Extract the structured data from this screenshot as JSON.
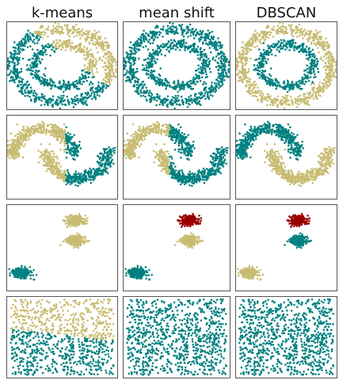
{
  "chart_data": {
    "type": "scatter",
    "columns": [
      "k-means",
      "mean shift",
      "DBSCAN"
    ],
    "xlim": [
      0,
      1
    ],
    "ylim": [
      0,
      1
    ],
    "grid": false,
    "colors": {
      "c0": "#008080",
      "c1": "#c8bc72",
      "c2": "#990000"
    },
    "rows": [
      {
        "dataset": "concentric circles",
        "shapes": [
          {
            "id": "outer",
            "kind": "ring",
            "cx": 0.5,
            "cy": 0.5,
            "rx": 0.44,
            "ry": 0.42,
            "noise": 0.035,
            "n": 750
          },
          {
            "id": "inner",
            "kind": "ring",
            "cx": 0.5,
            "cy": 0.5,
            "rx": 0.27,
            "ry": 0.24,
            "noise": 0.03,
            "n": 450
          }
        ],
        "assignments": [
          {
            "method": "k-means",
            "rule": "diagonal",
            "a": -0.9,
            "b": 1.1,
            "above": "c1",
            "below": "c0"
          },
          {
            "method": "mean shift",
            "rule": "all",
            "cluster": "c0"
          },
          {
            "method": "DBSCAN",
            "rule": "shape",
            "map": {
              "outer": "c1",
              "inner": "c0"
            }
          }
        ]
      },
      {
        "dataset": "half moons",
        "shapes": [
          {
            "id": "upper_moon",
            "kind": "arc",
            "cx": 0.33,
            "cy": 0.5,
            "rx": 0.28,
            "ry": 0.34,
            "from": 0,
            "to": 180,
            "noise": 0.035,
            "n": 550
          },
          {
            "id": "lower_moon",
            "kind": "arc",
            "cx": 0.64,
            "cy": 0.58,
            "rx": 0.28,
            "ry": 0.34,
            "from": 180,
            "to": 360,
            "noise": 0.035,
            "n": 550
          }
        ],
        "assignments": [
          {
            "method": "k-means",
            "rule": "vertical",
            "split": 0.53,
            "left": "c1",
            "right": "c0"
          },
          {
            "method": "mean shift",
            "rule": "vertical",
            "split": 0.43,
            "left": "c1",
            "right": "c0"
          },
          {
            "method": "DBSCAN",
            "rule": "shape",
            "map": {
              "upper_moon": "c0",
              "lower_moon": "c1"
            }
          }
        ]
      },
      {
        "dataset": "blobs",
        "shapes": [
          {
            "id": "blob_a",
            "kind": "blob",
            "cx": 0.62,
            "cy": 0.82,
            "sx": 0.045,
            "sy": 0.03,
            "n": 230
          },
          {
            "id": "blob_b",
            "kind": "blob",
            "cx": 0.62,
            "cy": 0.58,
            "sx": 0.045,
            "sy": 0.03,
            "n": 230
          },
          {
            "id": "blob_c",
            "kind": "blob",
            "cx": 0.14,
            "cy": 0.2,
            "sx": 0.045,
            "sy": 0.03,
            "n": 230
          }
        ],
        "assignments": [
          {
            "method": "k-means",
            "rule": "shape",
            "map": {
              "blob_a": "c1",
              "blob_b": "c1",
              "blob_c": "c0"
            }
          },
          {
            "method": "mean shift",
            "rule": "shape",
            "map": {
              "blob_a": "c2",
              "blob_b": "c1",
              "blob_c": "c0"
            }
          },
          {
            "method": "DBSCAN",
            "rule": "shape",
            "map": {
              "blob_a": "c2",
              "blob_b": "c0",
              "blob_c": "c1"
            }
          }
        ]
      },
      {
        "dataset": "uniform noise",
        "shapes": [
          {
            "id": "uniform",
            "kind": "uniform",
            "x0": 0.03,
            "x1": 0.97,
            "y0": 0.03,
            "y1": 0.97,
            "n": 900
          }
        ],
        "assignments": [
          {
            "method": "k-means",
            "rule": "diagonal",
            "a": -0.15,
            "b": 0.6,
            "above": "c1",
            "below": "c0"
          },
          {
            "method": "mean shift",
            "rule": "all",
            "cluster": "c0"
          },
          {
            "method": "DBSCAN",
            "rule": "all",
            "cluster": "c0"
          }
        ]
      }
    ]
  }
}
